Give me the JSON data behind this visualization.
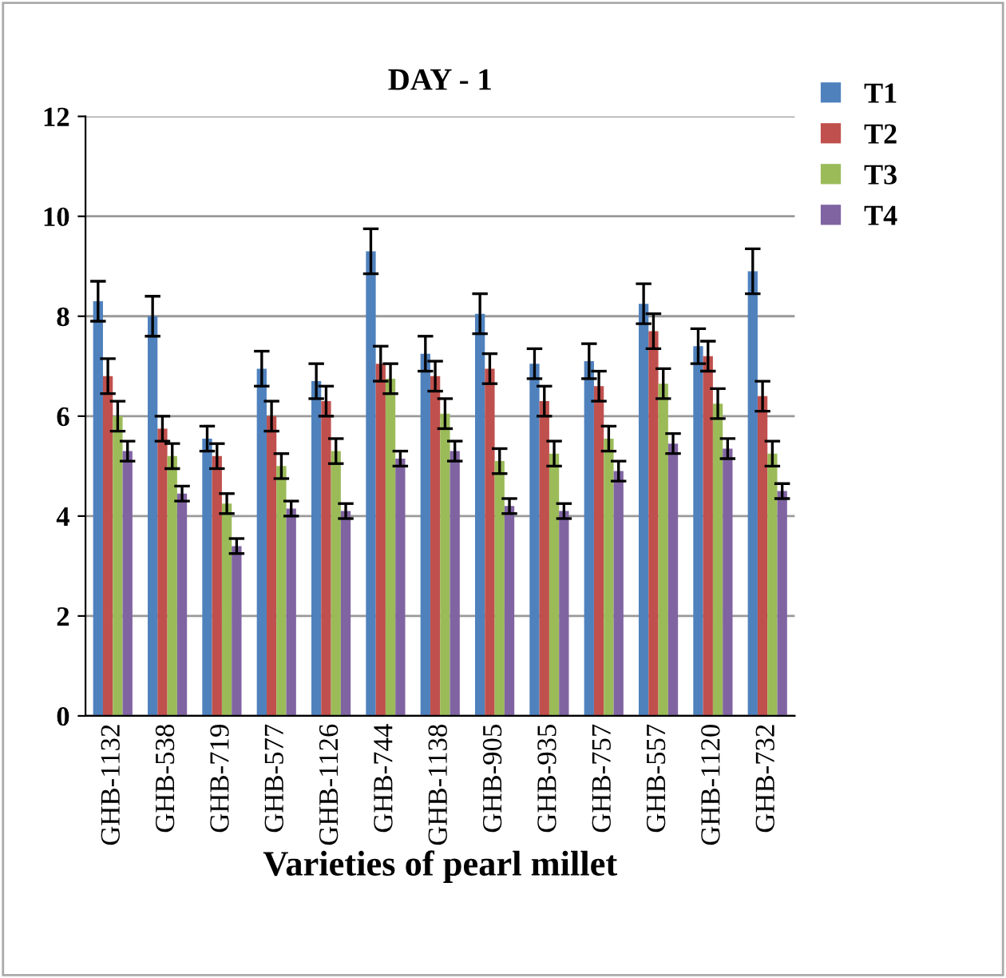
{
  "chart_data": {
    "type": "bar",
    "title": "DAY - 1",
    "xlabel": "Varieties of pearl millet",
    "categories": [
      "GHB-1132",
      "GHB-538",
      "GHB-719",
      "GHB-577",
      "GHB-1126",
      "GHB-744",
      "GHB-1138",
      "GHB-905",
      "GHB-935",
      "GHB-757",
      "GHB-557",
      "GHB-1120",
      "GHB-732"
    ],
    "series": [
      {
        "name": "T1",
        "color": "#4f81bd",
        "values": [
          8.3,
          8.0,
          5.55,
          6.95,
          6.7,
          9.3,
          7.25,
          8.05,
          7.05,
          7.1,
          8.25,
          7.4,
          8.9
        ],
        "errors": [
          0.4,
          0.4,
          0.25,
          0.35,
          0.35,
          0.45,
          0.35,
          0.4,
          0.3,
          0.35,
          0.4,
          0.35,
          0.45
        ]
      },
      {
        "name": "T2",
        "color": "#c0504d",
        "values": [
          6.8,
          5.75,
          5.2,
          6.0,
          6.3,
          7.05,
          6.8,
          6.95,
          6.3,
          6.6,
          7.7,
          7.2,
          6.4
        ],
        "errors": [
          0.35,
          0.25,
          0.25,
          0.3,
          0.3,
          0.35,
          0.3,
          0.3,
          0.3,
          0.3,
          0.35,
          0.3,
          0.3
        ]
      },
      {
        "name": "T3",
        "color": "#9bbb59",
        "values": [
          6.0,
          5.2,
          4.25,
          5.0,
          5.3,
          6.75,
          6.05,
          5.1,
          5.25,
          5.55,
          6.65,
          6.25,
          5.25
        ],
        "errors": [
          0.3,
          0.25,
          0.2,
          0.25,
          0.25,
          0.3,
          0.3,
          0.25,
          0.25,
          0.25,
          0.3,
          0.3,
          0.25
        ]
      },
      {
        "name": "T4",
        "color": "#8064a2",
        "values": [
          5.3,
          4.45,
          3.4,
          4.15,
          4.1,
          5.15,
          5.3,
          4.2,
          4.1,
          4.9,
          5.45,
          5.35,
          4.5
        ],
        "errors": [
          0.2,
          0.15,
          0.15,
          0.15,
          0.15,
          0.15,
          0.2,
          0.15,
          0.15,
          0.2,
          0.2,
          0.2,
          0.15
        ]
      }
    ],
    "ylim": [
      0,
      12
    ],
    "yticks": [
      0,
      2,
      4,
      6,
      8,
      10,
      12
    ],
    "grid": "y",
    "legend": "top right"
  }
}
